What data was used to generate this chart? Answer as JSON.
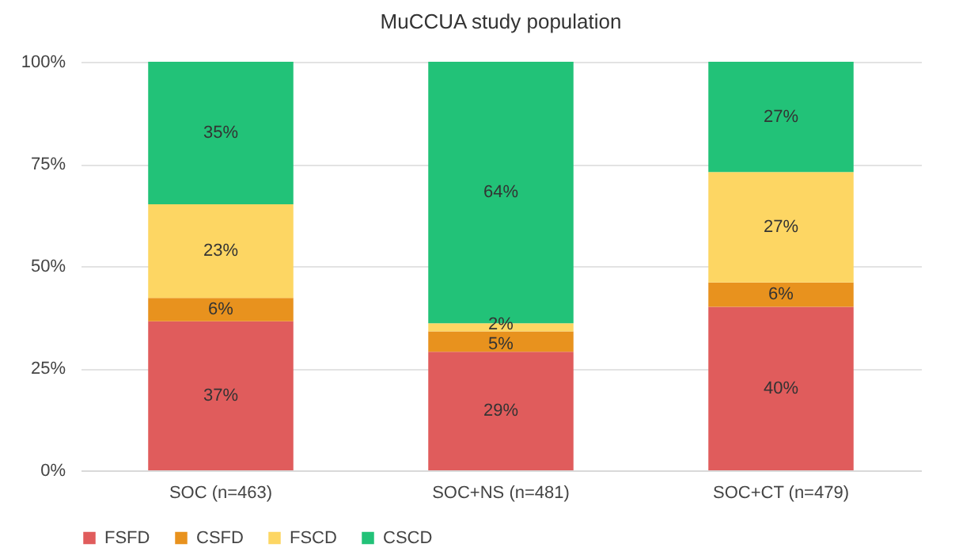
{
  "chart_data": {
    "type": "bar",
    "title": "MuCCUA study population",
    "categories": [
      "SOC (n=463)",
      "SOC+NS (n=481)",
      "SOC+CT (n=479)"
    ],
    "stacked": true,
    "series": [
      {
        "name": "FSFD",
        "color": "#e05c5c",
        "values": [
          36.5,
          29,
          40
        ],
        "value_labels": [
          "37%",
          "29%",
          "40%"
        ]
      },
      {
        "name": "CSFD",
        "color": "#e8921e",
        "values": [
          5.7,
          5,
          6
        ],
        "value_labels": [
          "6%",
          "5%",
          "6%"
        ]
      },
      {
        "name": "FSCD",
        "color": "#fdd663",
        "values": [
          22.9,
          2,
          27
        ],
        "value_labels": [
          "23%",
          "2%",
          "27%"
        ]
      },
      {
        "name": "CSCD",
        "color": "#22c278",
        "values": [
          34.9,
          64,
          27
        ],
        "value_labels": [
          "35%",
          "64%",
          "27%"
        ]
      }
    ],
    "ylim": [
      0,
      100
    ],
    "yticks": [
      {
        "value": 0,
        "label": "0%"
      },
      {
        "value": 25,
        "label": "25%"
      },
      {
        "value": 50,
        "label": "50%"
      },
      {
        "value": 75,
        "label": "75%"
      },
      {
        "value": 100,
        "label": "100%"
      }
    ],
    "grid": "y",
    "legend": "bottom"
  }
}
